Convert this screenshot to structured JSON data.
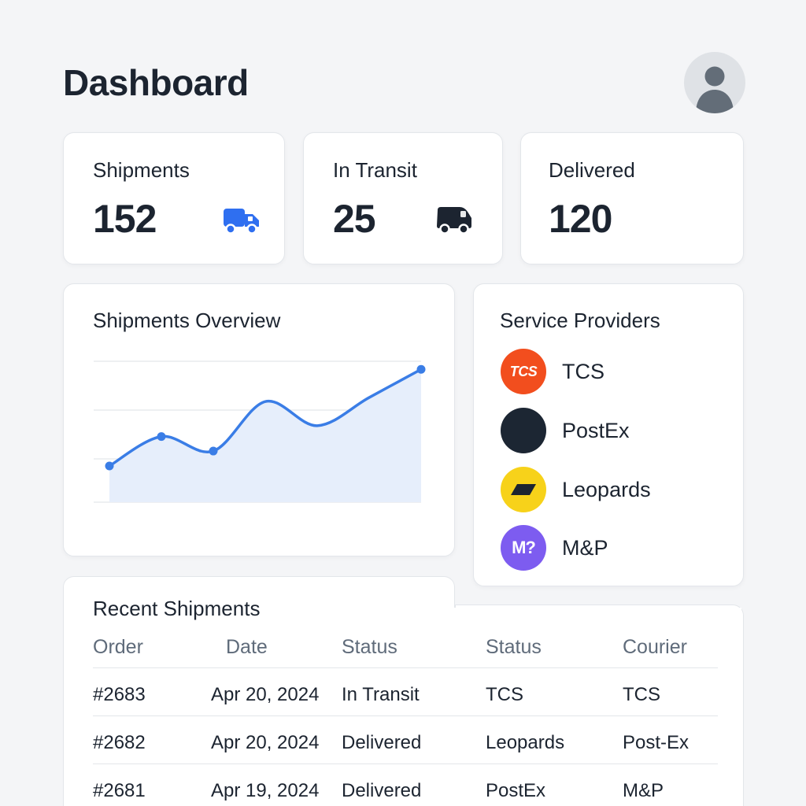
{
  "header": {
    "title": "Dashboard",
    "avatar_icon": "user-avatar-icon"
  },
  "stats": [
    {
      "label": "Shipments",
      "value": "152",
      "icon": "truck-icon",
      "icon_color": "#2f6ff0"
    },
    {
      "label": "In Transit",
      "value": "25",
      "icon": "van-icon",
      "icon_color": "#1c2430"
    },
    {
      "label": "Delivered",
      "value": "120"
    }
  ],
  "overview": {
    "title": "Shipments Overview"
  },
  "chart_data": {
    "type": "area",
    "x": [
      0,
      1,
      2,
      3,
      4,
      5,
      6
    ],
    "values": [
      0.0,
      0.73,
      0.37,
      1.6,
      1.0,
      1.7,
      2.4
    ],
    "title": "Shipments Overview",
    "xlabel": "",
    "ylabel": "",
    "ylim": [
      -0.9,
      2.6
    ],
    "grid": true,
    "line_color": "#3a7de6",
    "fill_color": "#e6eefb",
    "markers_at_index": [
      0,
      1,
      2,
      6
    ]
  },
  "providers": {
    "title": "Service Providers",
    "items": [
      {
        "name": "TCS",
        "logo_text": "TCS",
        "color": "#f24e1e",
        "icon": "tcs-logo-icon"
      },
      {
        "name": "PostEx",
        "logo_text": "",
        "color": "#1c2633",
        "icon": "postex-logo-icon"
      },
      {
        "name": "Leopards",
        "logo_text": "",
        "color": "#f7d21a",
        "icon": "leopards-logo-icon"
      },
      {
        "name": "M&P",
        "logo_text": "M?",
        "color": "#7d5cf0",
        "icon": "mp-logo-icon"
      }
    ]
  },
  "recent": {
    "title": "Recent Shipments",
    "columns": [
      "Order",
      "Date",
      "Status",
      "Status",
      "Courier"
    ],
    "rows": [
      [
        "#2683",
        "Apr 20, 2024",
        "In Transit",
        "TCS",
        "TCS"
      ],
      [
        "#2682",
        "Apr 20, 2024",
        "Delivered",
        "Leopards",
        "Post-Ex"
      ],
      [
        "#2681",
        "Apr 19, 2024",
        "Delivered",
        "PostEx",
        "M&P"
      ]
    ]
  }
}
